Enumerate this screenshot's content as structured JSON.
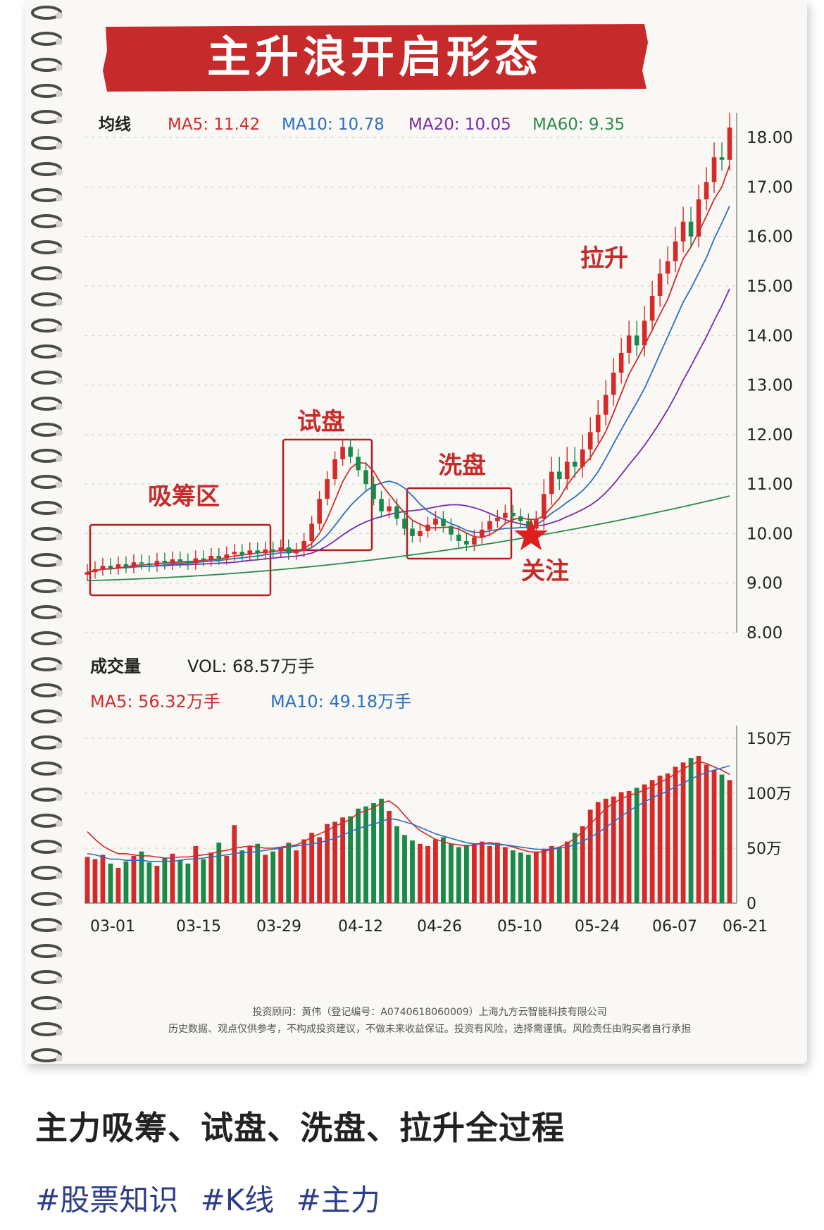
{
  "title_banner": "主升浪开启形态",
  "colors": {
    "up": "#d42a2a",
    "down": "#1a8a4a",
    "ma5": "#d02a2a",
    "ma10": "#2a6fc0",
    "ma20": "#7a2aa8",
    "ma60": "#2a8a4a",
    "banner": "#c62a2a",
    "text_dark": "#222222"
  },
  "price_panel": {
    "legend_title": "均线",
    "ma5_label": "MA5: 11.42",
    "ma10_label": "MA10: 10.78",
    "ma20_label": "MA20: 10.05",
    "ma60_label": "MA60: 9.35"
  },
  "volume_panel": {
    "title": "成交量",
    "vol_label": "VOL: 68.57万手",
    "ma5_label": "MA5: 56.32万手",
    "ma10_label": "MA10: 49.18万手"
  },
  "annotations": {
    "accumulate": "吸筹区",
    "test": "试盘",
    "wash": "洗盘",
    "pullup": "拉升",
    "focus": "关注"
  },
  "disclaimer": {
    "line1": "投资顾问：黄伟（登记编号：A0740618060009）上海九方云智能科技有限公司",
    "line2": "历史数据、观点仅供参考，不构成投资建议，不做未来收益保证。投资有风险，选择需谨慎。风险责任由购买者自行承担"
  },
  "caption": "主力吸筹、试盘、洗盘、拉升全过程",
  "tags": [
    "#股票知识",
    "#K线",
    "#主力"
  ],
  "chart_data": [
    {
      "type": "candlestick",
      "ylim": [
        8,
        18.5
      ],
      "y_ticks": [
        "18.00",
        "17.00",
        "16.00",
        "15.00",
        "14.00",
        "13.00",
        "12.00",
        "11.00",
        "10.00",
        "9.00",
        "8.00"
      ],
      "x_ticks": [
        "03-01",
        "03-15",
        "03-29",
        "04-12",
        "04-26",
        "05-10",
        "05-24",
        "06-07",
        "06-21"
      ],
      "close": [
        9.22,
        9.28,
        9.35,
        9.3,
        9.38,
        9.33,
        9.42,
        9.4,
        9.36,
        9.45,
        9.4,
        9.48,
        9.44,
        9.4,
        9.5,
        9.47,
        9.55,
        9.5,
        9.58,
        9.63,
        9.57,
        9.66,
        9.6,
        9.68,
        9.64,
        9.72,
        9.6,
        9.65,
        9.85,
        10.2,
        10.7,
        11.1,
        11.5,
        11.75,
        11.55,
        11.28,
        11.0,
        10.7,
        10.45,
        10.55,
        10.3,
        10.1,
        9.95,
        10.05,
        10.18,
        10.3,
        10.15,
        9.98,
        9.85,
        9.78,
        9.92,
        10.08,
        10.25,
        10.32,
        10.42,
        10.35,
        10.25,
        10.1,
        10.3,
        10.8,
        11.25,
        11.1,
        11.45,
        11.35,
        11.7,
        12.05,
        12.4,
        12.8,
        13.25,
        13.65,
        14.0,
        13.8,
        14.3,
        14.8,
        15.25,
        15.5,
        15.9,
        16.3,
        16.0,
        16.75,
        17.1,
        17.6,
        17.55,
        18.2
      ]
    },
    {
      "type": "bar",
      "ylim": [
        0,
        150
      ],
      "y_ticks": [
        "150万",
        "100万",
        "50万",
        "0"
      ],
      "x_ticks": [
        "03-01",
        "03-15",
        "03-29",
        "04-12",
        "04-26",
        "05-10",
        "05-24",
        "06-07",
        "06-21"
      ],
      "values": [
        42,
        40,
        44,
        36,
        32,
        38,
        43,
        47,
        37,
        34,
        41,
        45,
        39,
        36,
        52,
        40,
        46,
        55,
        43,
        71,
        48,
        52,
        54,
        44,
        47,
        50,
        55,
        48,
        58,
        64,
        60,
        72,
        74,
        78,
        79,
        86,
        88,
        91,
        95,
        84,
        70,
        62,
        57,
        54,
        52,
        58,
        60,
        54,
        51,
        53,
        54,
        56,
        52,
        55,
        51,
        48,
        46,
        44,
        47,
        49,
        52,
        51,
        56,
        64,
        70,
        85,
        92,
        95,
        97,
        101,
        102,
        105,
        108,
        112,
        116,
        118,
        124,
        128,
        132,
        134,
        126,
        121,
        117,
        112
      ],
      "series": [
        {
          "name": "MA5",
          "values": [
            65,
            58,
            52,
            48,
            45,
            45,
            44,
            43,
            43,
            42,
            41,
            41,
            42,
            42,
            43,
            44,
            45,
            47,
            48,
            50,
            51,
            52,
            51,
            50,
            50,
            51,
            52,
            53,
            56,
            60,
            63,
            66,
            70,
            73,
            76,
            82,
            84,
            87,
            91,
            93,
            88,
            80,
            72,
            66,
            62,
            58,
            56,
            54,
            53,
            52,
            53,
            54,
            55,
            54,
            53,
            51,
            49,
            47,
            46,
            47,
            49,
            51,
            54,
            59,
            65,
            72,
            79,
            86,
            91,
            95,
            98,
            100,
            103,
            106,
            110,
            113,
            118,
            122,
            126,
            129,
            127,
            124,
            121,
            117
          ]
        },
        {
          "name": "MA10",
          "values": [
            45,
            44,
            42,
            40,
            40,
            39,
            39,
            39,
            38,
            38,
            38,
            38,
            39,
            40,
            40,
            41,
            42,
            43,
            44,
            45,
            46,
            46,
            47,
            48,
            49,
            50,
            51,
            52,
            53,
            54,
            55,
            57,
            59,
            62,
            65,
            68,
            70,
            72,
            74,
            77,
            76,
            74,
            72,
            69,
            66,
            63,
            61,
            59,
            57,
            55,
            54,
            54,
            54,
            53,
            53,
            52,
            51,
            50,
            49,
            49,
            49,
            50,
            51,
            53,
            56,
            60,
            64,
            69,
            74,
            79,
            84,
            88,
            92,
            96,
            99,
            102,
            106,
            109,
            113,
            116,
            119,
            121,
            123,
            125
          ]
        }
      ]
    }
  ]
}
